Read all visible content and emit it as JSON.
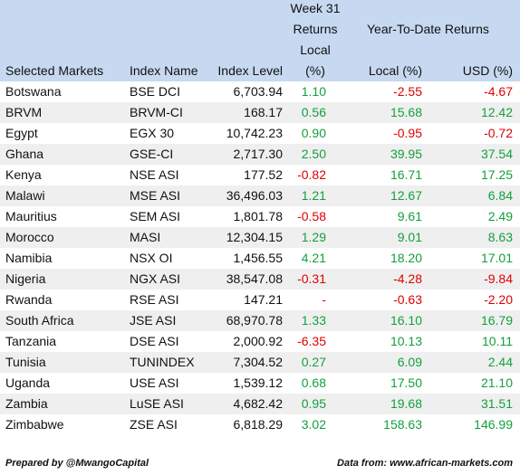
{
  "header": {
    "week_lines": [
      "Week 31",
      "Returns",
      "Local",
      "(%)"
    ],
    "ytd": "Year-To-Date Returns",
    "columns": [
      "Selected Markets",
      "Index Name",
      "Index Level",
      "Local (%)",
      "USD (%)"
    ]
  },
  "table": {
    "rows": [
      [
        "Botswana",
        "BSE DCI",
        "6,703.94",
        "1.10",
        "-2.55",
        "-4.67"
      ],
      [
        "BRVM",
        "BRVM-CI",
        "168.17",
        "0.56",
        "15.68",
        "12.42"
      ],
      [
        "Egypt",
        "EGX 30",
        "10,742.23",
        "0.90",
        "-0.95",
        "-0.72"
      ],
      [
        "Ghana",
        "GSE-CI",
        "2,717.30",
        "2.50",
        "39.95",
        "37.54"
      ],
      [
        "Kenya",
        "NSE ASI",
        "177.52",
        "-0.82",
        "16.71",
        "17.25"
      ],
      [
        "Malawi",
        "MSE ASI",
        "36,496.03",
        "1.21",
        "12.67",
        "6.84"
      ],
      [
        "Mauritius",
        "SEM ASI",
        "1,801.78",
        "-0.58",
        "9.61",
        "2.49"
      ],
      [
        "Morocco",
        "MASI",
        "12,304.15",
        "1.29",
        "9.01",
        "8.63"
      ],
      [
        "Namibia",
        "NSX OI",
        "1,456.55",
        "4.21",
        "18.20",
        "17.01"
      ],
      [
        "Nigeria",
        "NGX ASI",
        "38,547.08",
        "-0.31",
        "-4.28",
        "-9.84"
      ],
      [
        "Rwanda",
        "RSE ASI",
        "147.21",
        "-",
        "-0.63",
        "-2.20"
      ],
      [
        "South Africa",
        "JSE ASI",
        "68,970.78",
        "1.33",
        "16.10",
        "16.79"
      ],
      [
        "Tanzania",
        "DSE ASI",
        "2,000.92",
        "-6.35",
        "10.13",
        "10.11"
      ],
      [
        "Tunisia",
        "TUNINDEX",
        "7,304.52",
        "0.27",
        "6.09",
        "2.44"
      ],
      [
        "Uganda",
        "USE ASI",
        "1,539.12",
        "0.68",
        "17.50",
        "21.10"
      ],
      [
        "Zambia",
        "LuSE ASI",
        "4,682.42",
        "0.95",
        "19.68",
        "31.51"
      ],
      [
        "Zimbabwe",
        "ZSE ASI",
        "6,818.29",
        "3.02",
        "158.63",
        "146.99"
      ]
    ]
  },
  "footer": {
    "left": "Prepared by @MwangoCapital",
    "right": "Data from: www.african-markets.com"
  }
}
